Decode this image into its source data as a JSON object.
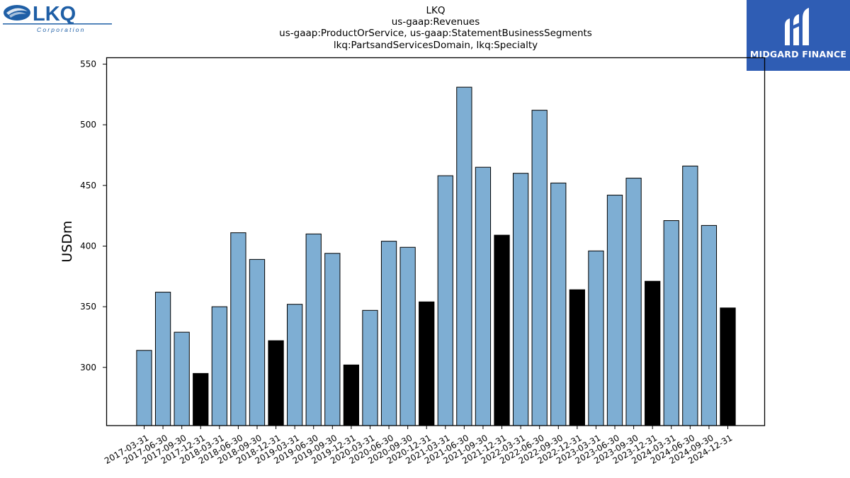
{
  "header": {
    "company_logo": "LKQ Corporation",
    "brand_logo": "MIDGARD FINANCE"
  },
  "colors": {
    "bar_regular": "#7eaed3",
    "bar_q4": "#000000",
    "brand_bg": "#2f5db4"
  },
  "chart_data": {
    "type": "bar",
    "title": [
      "LKQ",
      "us-gaap:Revenues",
      "us-gaap:ProductOrService, us-gaap:StatementBusinessSegments",
      "lkq:PartsandServicesDomain, lkq:Specialty"
    ],
    "xlabel": "",
    "ylabel": "USDm",
    "ylim": [
      252,
      555
    ],
    "yticks": [
      300,
      350,
      400,
      450,
      500,
      550
    ],
    "grid": false,
    "categories": [
      "2017-03-31",
      "2017-06-30",
      "2017-09-30",
      "2017-12-31",
      "2018-03-31",
      "2018-06-30",
      "2018-09-30",
      "2018-12-31",
      "2019-03-31",
      "2019-06-30",
      "2019-09-30",
      "2019-12-31",
      "2020-03-31",
      "2020-06-30",
      "2020-09-30",
      "2020-12-31",
      "2021-03-31",
      "2021-06-30",
      "2021-09-30",
      "2021-12-31",
      "2022-03-31",
      "2022-06-30",
      "2022-09-30",
      "2022-12-31",
      "2023-03-31",
      "2023-06-30",
      "2023-09-30",
      "2023-12-31",
      "2024-03-31",
      "2024-06-30",
      "2024-09-30",
      "2024-12-31"
    ],
    "values": [
      314,
      362,
      329,
      295,
      350,
      411,
      389,
      322,
      352,
      410,
      394,
      302,
      347,
      404,
      399,
      354,
      458,
      531,
      465,
      409,
      460,
      512,
      452,
      364,
      396,
      442,
      456,
      371,
      421,
      466,
      417,
      349
    ],
    "highlight_year_end": true
  }
}
